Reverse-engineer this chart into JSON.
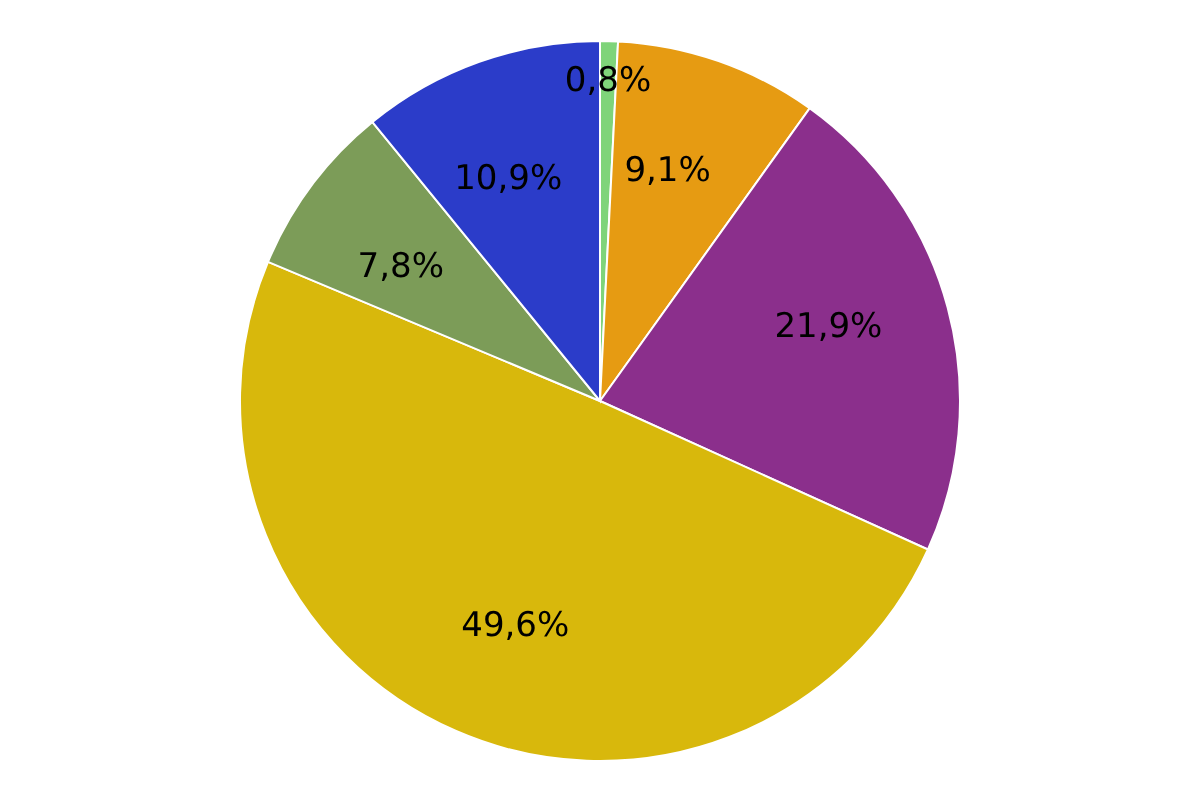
{
  "chart_data": {
    "type": "pie",
    "categories": [
      null,
      null,
      null,
      null,
      null,
      null
    ],
    "values": [
      0.8,
      9.1,
      21.9,
      49.6,
      7.8,
      10.9
    ],
    "colors": [
      "#7fd47a",
      "#e69b12",
      "#8b2f8c",
      "#d8b80c",
      "#7c9c58",
      "#2b3cc9"
    ],
    "value_labels": [
      "0,8%",
      "9,1%",
      "21,9%",
      "49,6%",
      "7,8%",
      "10,9%"
    ]
  }
}
